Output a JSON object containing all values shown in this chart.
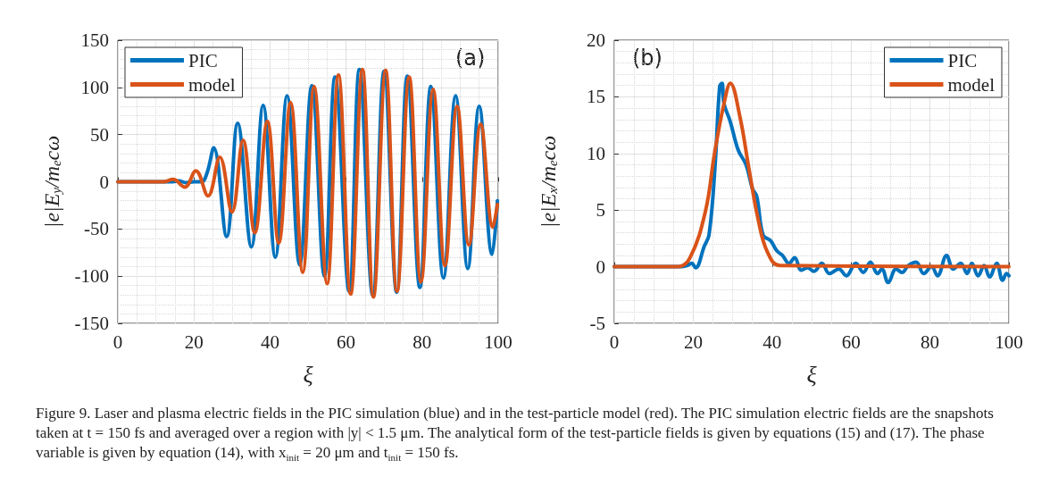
{
  "chart_data": [
    {
      "type": "line",
      "xlabel": "ξ",
      "ylabel": "|e|E$_{y}$/m$_{e}$cω",
      "xlim": [
        0,
        100
      ],
      "ylim": [
        -150,
        150
      ],
      "xticks": [
        0,
        20,
        40,
        60,
        80,
        100
      ],
      "yticks": [
        -150,
        -100,
        -50,
        0,
        50,
        100,
        150
      ],
      "grid": true,
      "legend": "top left",
      "line_style": "solid",
      "annotations": [
        "(a)",
        "Figure 9. Laser and plasma electric fields in the PIC simulation (blue) and in the test-particle model (red). The PIC simulation electric fields are the snapshots taken at t = 150 fs and averaged over a region with |y| < 1.5 μm. The analytical form of the test-particle fields is given by equations (15) and (17). The phase variable is given by equation (14), with x$_{init}$ = 20 μm and t$_{init}$ = 150 fs."
      ],
      "series": [
        {
          "name": "PIC",
          "color": "#0072bd",
          "x": [
            0,
            14,
            16,
            18,
            20,
            22,
            23.5,
            25.2,
            28.6,
            31.5,
            35.1,
            38.2,
            41.4,
            44.5,
            47.8,
            51,
            54.3,
            57.1,
            60.8,
            63.5,
            67,
            70,
            73.3,
            76.1,
            79.4,
            82.3,
            85.6,
            88.8,
            92,
            95,
            98.4,
            99.8
          ],
          "values": [
            0,
            0,
            1,
            -1,
            0,
            0,
            10,
            36,
            -58,
            62,
            -69,
            81,
            -80,
            91,
            -88,
            102,
            -100,
            111,
            -116,
            119,
            -120,
            117,
            -117,
            112,
            -112,
            101,
            -102,
            91,
            -92,
            80,
            -77,
            -20
          ]
        },
        {
          "name": "model",
          "color": "#d95319",
          "x": [
            0,
            12,
            14.5,
            17.6,
            20.5,
            23.7,
            26.8,
            30,
            32.9,
            36,
            39.3,
            42.3,
            45.4,
            48.6,
            51.6,
            55,
            58,
            61.2,
            64.3,
            67.2,
            70.4,
            73.4,
            76.6,
            79.7,
            82.9,
            86,
            89.2,
            92.3,
            95.4,
            98.6,
            99.8
          ],
          "values": [
            0,
            0,
            2.5,
            -5.6,
            11.6,
            -15,
            26,
            -32,
            44,
            -54,
            64,
            -65,
            84,
            -96,
            101,
            -108,
            113,
            -119,
            119,
            -122,
            118,
            -116,
            111,
            -106,
            98,
            -89,
            80,
            -67,
            61,
            -48,
            -24
          ]
        }
      ]
    },
    {
      "type": "line",
      "xlabel": "ξ",
      "ylabel": "|e|E$_{x}$/m$_{e}$cω",
      "xlim": [
        0,
        100
      ],
      "ylim": [
        -5,
        20
      ],
      "xticks": [
        0,
        20,
        40,
        60,
        80,
        100
      ],
      "yticks": [
        -5,
        0,
        5,
        10,
        15,
        20
      ],
      "grid": true,
      "legend": "top right",
      "line_style": "solid",
      "annotations": [
        "(b)"
      ],
      "series": [
        {
          "name": "PIC",
          "color": "#0072bd",
          "x": [
            0,
            16.9,
            18.4,
            19.6,
            20.6,
            22.8,
            24,
            25.5,
            26.7,
            27.3,
            27.8,
            29.4,
            31.4,
            33.4,
            35,
            36.1,
            37.7,
            39.6,
            41.2,
            42.6,
            44.3,
            45.7,
            47.4,
            49,
            50.6,
            52.6,
            54.5,
            56.9,
            58.8,
            61.2,
            63.1,
            64.9,
            66.7,
            67.8,
            69.4,
            71.4,
            72.9,
            74.5,
            76.5,
            78.4,
            80.4,
            81.9,
            84.2,
            85.9,
            87.8,
            89.4,
            90.6,
            92.2,
            93.7,
            95.1,
            96.9,
            98.4,
            99.4,
            100
          ],
          "values": [
            0,
            0,
            0.1,
            0.3,
            -0.1,
            1.8,
            2.8,
            8.7,
            15.9,
            16.2,
            14.4,
            12.8,
            10.3,
            9,
            6.9,
            6.2,
            2.8,
            2.3,
            1.4,
            1,
            0.3,
            0.8,
            -0.3,
            -0.1,
            -0.4,
            0.3,
            -0.6,
            -0.2,
            -0.8,
            0.3,
            -0.5,
            0.4,
            -0.6,
            -0.2,
            -1.4,
            -0.2,
            -0.5,
            0.1,
            0.4,
            -0.6,
            0,
            -0.8,
            1,
            -0.2,
            0.3,
            -0.6,
            0.3,
            -0.8,
            0.1,
            -0.9,
            0.3,
            -1.2,
            -0.6,
            -0.8
          ]
        },
        {
          "name": "model",
          "color": "#d95319",
          "x": [
            0,
            16.1,
            19.2,
            23.1,
            25.4,
            27.8,
            29.4,
            31.8,
            34.1,
            36.5,
            38.8,
            42,
            100
          ],
          "values": [
            0,
            0,
            0.8,
            4.9,
            10,
            14.4,
            16.2,
            13.3,
            8.7,
            4.1,
            1.3,
            0.1,
            0
          ]
        }
      ]
    }
  ]
}
